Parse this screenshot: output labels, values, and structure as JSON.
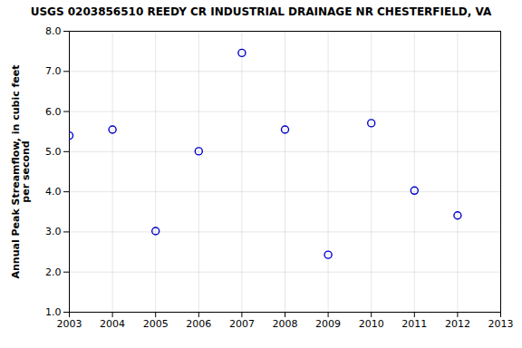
{
  "chart_data": {
    "type": "scatter",
    "title": "USGS 0203856510 REEDY CR INDUSTRIAL DRAINAGE NR CHESTERFIELD, VA",
    "ylabel": "Annual Peak Streamflow, in cubic feet\nper second",
    "x": [
      2003,
      2004,
      2005,
      2006,
      2007,
      2008,
      2009,
      2010,
      2011,
      2012
    ],
    "values": [
      5.4,
      5.55,
      3.02,
      5.01,
      7.46,
      5.55,
      2.43,
      5.71,
      4.03,
      3.41
    ],
    "color": "#0000cc",
    "marker": "open_circle",
    "xlim": [
      2003,
      2013
    ],
    "xticks": [
      2003,
      2004,
      2005,
      2006,
      2007,
      2008,
      2009,
      2010,
      2011,
      2012,
      2013
    ],
    "ylim": [
      1.0,
      8.0
    ],
    "yticks": [
      {
        "value": 1.0,
        "label": "1.0"
      },
      {
        "value": 2.0,
        "label": "2.0"
      },
      {
        "value": 3.0,
        "label": "3.0"
      },
      {
        "value": 4.0,
        "label": "4.0"
      },
      {
        "value": 5.0,
        "label": "5.0"
      },
      {
        "value": 6.0,
        "label": "6.0"
      },
      {
        "value": 7.0,
        "label": "7.0"
      },
      {
        "value": 8.0,
        "label": "8.0"
      }
    ],
    "grid": true
  }
}
